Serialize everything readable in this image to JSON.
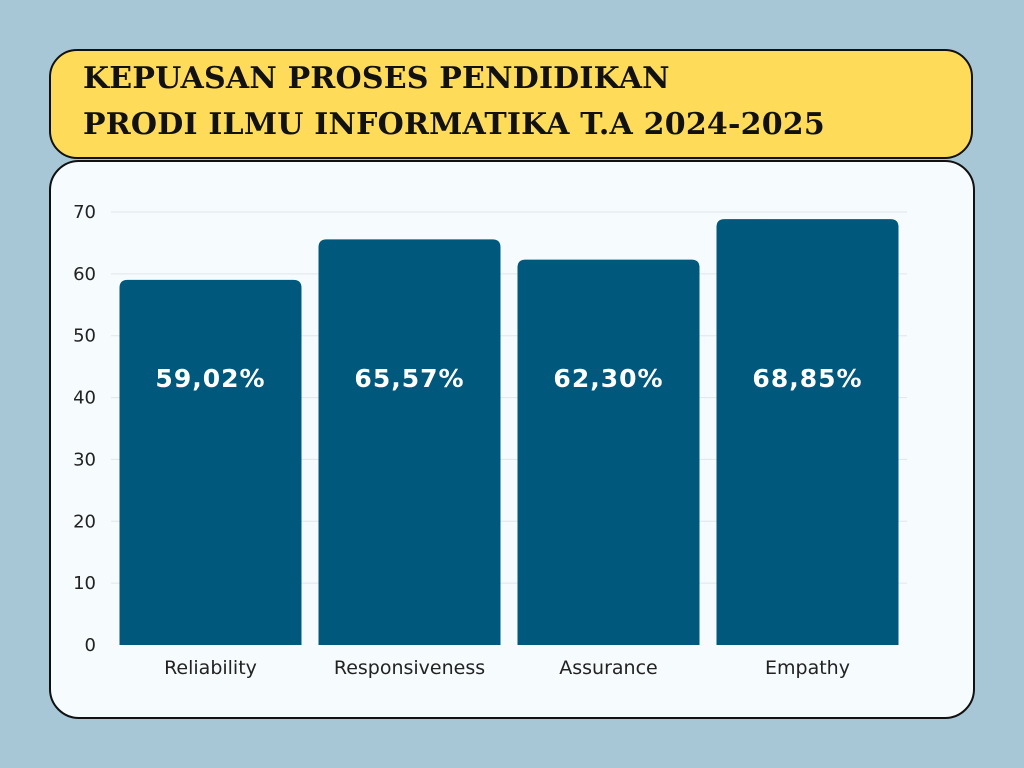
{
  "header": {
    "title_line1": "KEPUASAN PROSES PENDIDIKAN",
    "title_line2": "PRODI ILMU INFORMATIKA T.A 2024-2025"
  },
  "colors": {
    "background": "#a7c7d7",
    "title_bg": "#fedc5a",
    "bar": "#00587d",
    "grid": "#dfe6ea"
  },
  "chart_data": {
    "type": "bar",
    "categories": [
      "Reliability",
      "Responsiveness",
      "Assurance",
      "Empathy"
    ],
    "values": [
      59.02,
      65.57,
      62.3,
      68.85
    ],
    "data_labels": [
      "59,02%",
      "65,57%",
      "62,30%",
      "68,85%"
    ],
    "yticks": [
      0,
      10,
      20,
      30,
      40,
      50,
      60,
      70
    ],
    "ylim": [
      0,
      70
    ],
    "title": "KEPUASAN PROSES PENDIDIKAN PRODI ILMU INFORMATIKA T.A 2024-2025",
    "xlabel": "",
    "ylabel": "",
    "grid": true
  }
}
